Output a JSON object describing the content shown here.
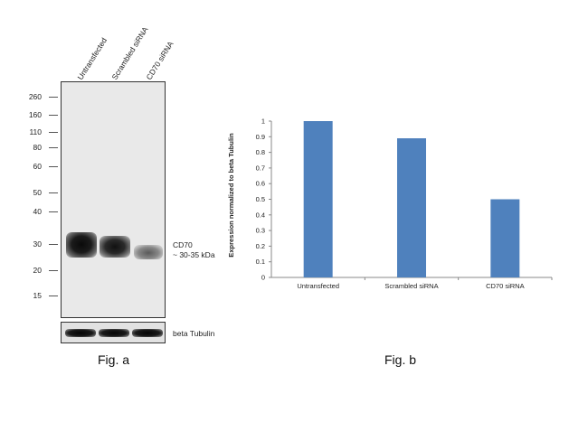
{
  "figure_a": {
    "caption": "Fig. a",
    "lanes": [
      "Untransfected",
      "Scrambled siRNA",
      "CD70 siRNA"
    ],
    "mw_markers": [
      "260",
      "160",
      "110",
      "80",
      "60",
      "50",
      "40",
      "30",
      "20",
      "15"
    ],
    "band_label": "CD70",
    "band_size": "~ 30-35 kDa",
    "loading_control": "beta Tubulin"
  },
  "figure_b": {
    "caption": "Fig. b"
  },
  "chart_data": {
    "type": "bar",
    "categories": [
      "Untransfected",
      "Scrambled siRNA",
      "CD70  siRNA"
    ],
    "values": [
      1.0,
      0.89,
      0.5
    ],
    "ylabel": "Expression  normalized to beta Tubulin",
    "xlabel": "",
    "ylim": [
      0,
      1
    ],
    "yticks": [
      "0",
      "0.1",
      "0.2",
      "0.3",
      "0.4",
      "0.5",
      "0.6",
      "0.7",
      "0.8",
      "0.9",
      "1"
    ],
    "bar_color": "#4f81bd",
    "grid": false
  }
}
